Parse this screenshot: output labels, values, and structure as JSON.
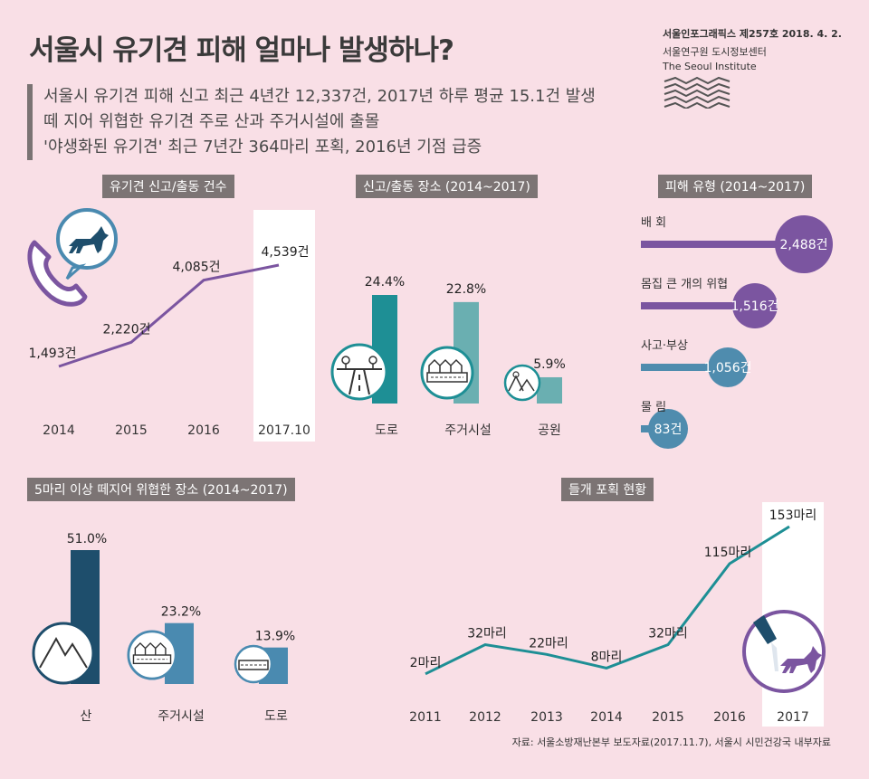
{
  "header": {
    "title": "서울시 유기견 피해 얼마나 발생하나?",
    "issue": "서울인포그래픽스 제257호 2018. 4. 2.",
    "org_ko": "서울연구원 도시정보센터",
    "org_en": "The Seoul Institute"
  },
  "summary": [
    "서울시 유기견 피해 신고 최근 4년간 12,337건, 2017년 하루 평균 15.1건 발생",
    "떼 지어 위협한 유기견 주로 산과 주거시설에 출몰",
    "'야생화된 유기견' 최근 7년간 364마리 포획, 2016년 기점 급증"
  ],
  "sections": {
    "reports": "유기견 신고/출동 건수",
    "locations": "신고/출동 장소 (2014~2017)",
    "damage": "피해 유형 (2014~2017)",
    "pack": "5마리 이상 떼지어 위협한 장소 (2014~2017)",
    "capture": "들개 포획 현황"
  },
  "source": "자료: 서울소방재난본부 보도자료(2017.11.7), 서울시 시민건강국 내부자료",
  "colors": {
    "purple": "#7b55a0",
    "teal": "#1e8f95",
    "teal_light": "#6aafb1",
    "navy": "#1e4e6c",
    "blue": "#4a8ab0",
    "steel": "#4f8cae",
    "background": "#f9dfe6",
    "section_bg": "#7c7474"
  },
  "icons": [
    "phone-dog-icon",
    "road-icon",
    "houses-icon",
    "park-icon",
    "mountain-icon",
    "dog-capture-icon",
    "seoul-institute-logo-icon"
  ],
  "chart_data": [
    {
      "id": "reports",
      "type": "line",
      "categories": [
        "2014",
        "2015",
        "2016",
        "2017.10"
      ],
      "values": [
        1493,
        2220,
        4085,
        4539
      ],
      "labels": [
        "1,493건",
        "2,220건",
        "4,085건",
        "4,539건"
      ],
      "highlight": "2017.10"
    },
    {
      "id": "locations",
      "type": "bar",
      "categories": [
        "도로",
        "주거시설",
        "공원"
      ],
      "values": [
        24.4,
        22.8,
        5.9
      ],
      "labels": [
        "24.4%",
        "22.8%",
        "5.9%"
      ]
    },
    {
      "id": "damage",
      "type": "bar",
      "orientation": "horizontal",
      "categories": [
        "배 회",
        "몸집 큰 개의 위협",
        "사고·부상",
        "물 림"
      ],
      "values": [
        2488,
        1516,
        1056,
        83
      ],
      "labels": [
        "2,488건",
        "1,516건",
        "1,056건",
        "83건"
      ]
    },
    {
      "id": "pack",
      "type": "bar",
      "categories": [
        "산",
        "주거시설",
        "도로"
      ],
      "values": [
        51.0,
        23.2,
        13.9
      ],
      "labels": [
        "51.0%",
        "23.2%",
        "13.9%"
      ]
    },
    {
      "id": "capture",
      "type": "line",
      "categories": [
        "2011",
        "2012",
        "2013",
        "2014",
        "2015",
        "2016",
        "2017"
      ],
      "values": [
        2,
        32,
        22,
        8,
        32,
        115,
        153
      ],
      "labels": [
        "2마리",
        "32마리",
        "22마리",
        "8마리",
        "32마리",
        "115마리",
        "153마리"
      ],
      "highlight": "2017"
    }
  ]
}
